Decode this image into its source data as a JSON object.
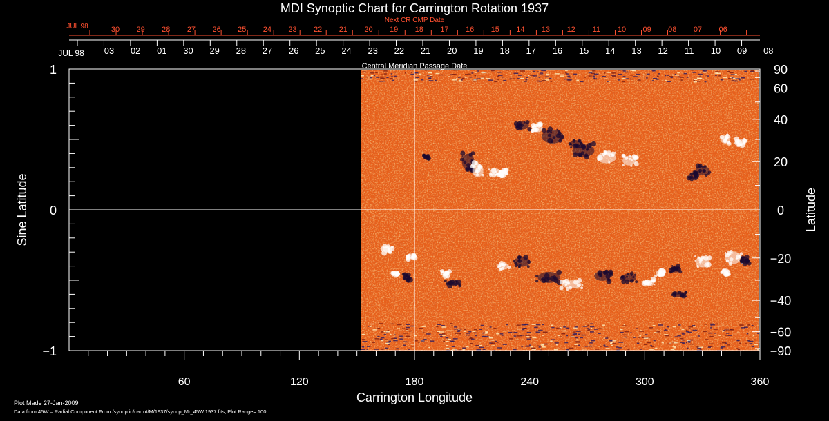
{
  "chart_data": {
    "type": "heatmap",
    "title": "MDI Synoptic Chart for Carrington Rotation 1937",
    "xlabel": "Carrington Longitude",
    "ylabel_left": "Sine Latitude",
    "ylabel_right": "Latitude",
    "xlim": [
      0,
      360
    ],
    "ylim": [
      -1,
      1
    ],
    "x_ticks": [
      60,
      120,
      180,
      240,
      300,
      360
    ],
    "y_ticks_left": [
      {
        "value": 1,
        "label": "1"
      },
      {
        "value": 0,
        "label": "0"
      },
      {
        "value": -1,
        "label": "−1"
      }
    ],
    "y_ticks_right": [
      {
        "value": 90,
        "label": "90"
      },
      {
        "value": 60,
        "label": "60"
      },
      {
        "value": 40,
        "label": "40"
      },
      {
        "value": 20,
        "label": "20"
      },
      {
        "value": 0,
        "label": "0"
      },
      {
        "value": -20,
        "label": "−20"
      },
      {
        "value": -40,
        "label": "−40"
      },
      {
        "value": -60,
        "label": "−60"
      },
      {
        "value": -90,
        "label": "−90"
      }
    ],
    "data_start_longitude": 152,
    "top_axis": {
      "label": "Central Meridian Passage Date",
      "start_label": "JUL 98",
      "dates": [
        "03",
        "02",
        "01",
        "30",
        "29",
        "28",
        "27",
        "26",
        "25",
        "24",
        "23",
        "22",
        "21",
        "20",
        "19",
        "18",
        "17",
        "16",
        "15",
        "14",
        "13",
        "12",
        "11",
        "10",
        "09",
        "08"
      ]
    },
    "next_axis": {
      "label": "Next CR CMP Date",
      "start_label": "JUL 98",
      "dates": [
        "30",
        "29",
        "28",
        "27",
        "26",
        "25",
        "24",
        "23",
        "22",
        "21",
        "20",
        "19",
        "18",
        "17",
        "16",
        "15",
        "14",
        "13",
        "12",
        "11",
        "10",
        "09",
        "08",
        "07",
        "06"
      ]
    },
    "colors": {
      "background": "#000000",
      "field_base": "#e8601a",
      "positive": "#ffffff",
      "negative": "#1a0a30",
      "next_axis": "#ff5030",
      "grid": "#ffffff"
    },
    "plot_made": "Plot Made 27-Jan-2009",
    "data_source": "Data from 45W – Radial Component From /synoptic/carrot/M/1937/synop_Mr_45W.1937.fits; Plot Range= 100"
  }
}
